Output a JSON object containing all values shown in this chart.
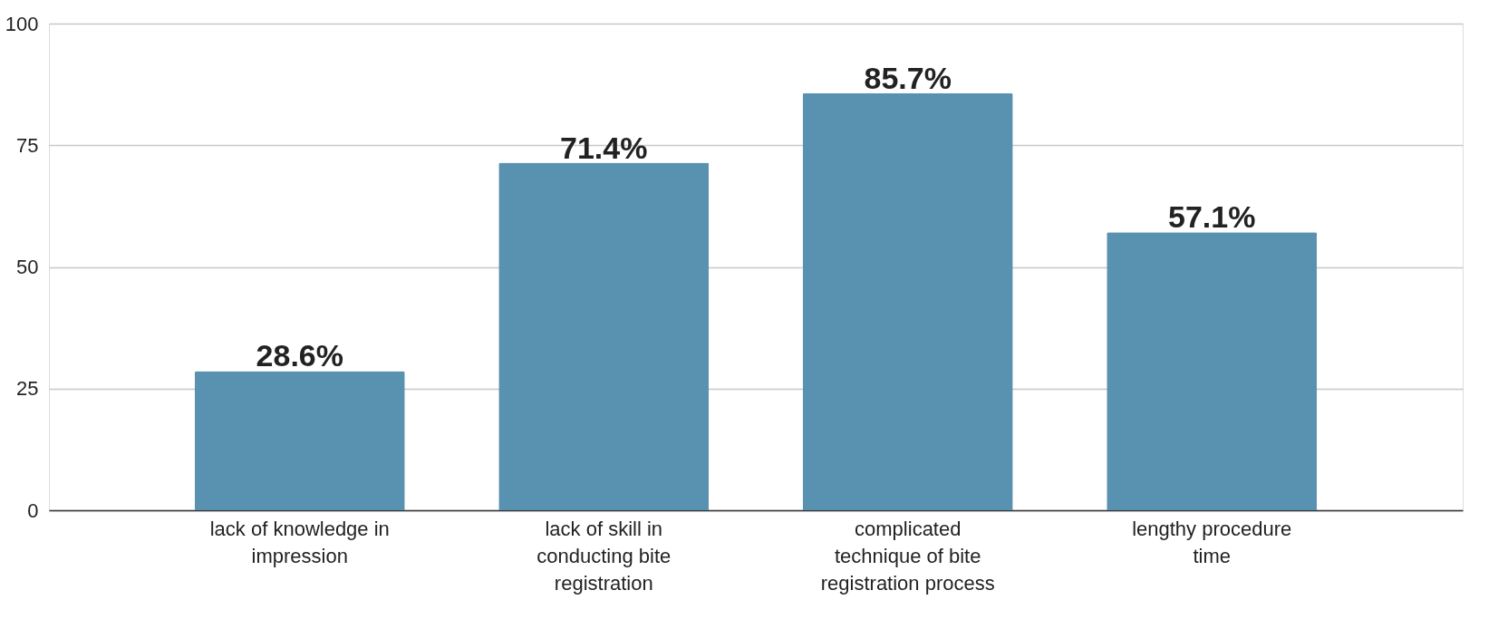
{
  "chart_data": {
    "type": "bar",
    "categories": [
      "lack of knowledge in impression",
      "lack of skill in conducting bite registration",
      "complicated technique of bite registration process",
      "lengthy procedure time"
    ],
    "values": [
      28.6,
      71.4,
      85.7,
      57.1
    ],
    "value_labels": [
      "28.6%",
      "71.4%",
      "85.7%",
      "57.1%"
    ],
    "color": "#5892b0",
    "ylim": [
      0,
      100
    ],
    "yticks": [
      0,
      25,
      50,
      75,
      100
    ],
    "grid": "y"
  }
}
